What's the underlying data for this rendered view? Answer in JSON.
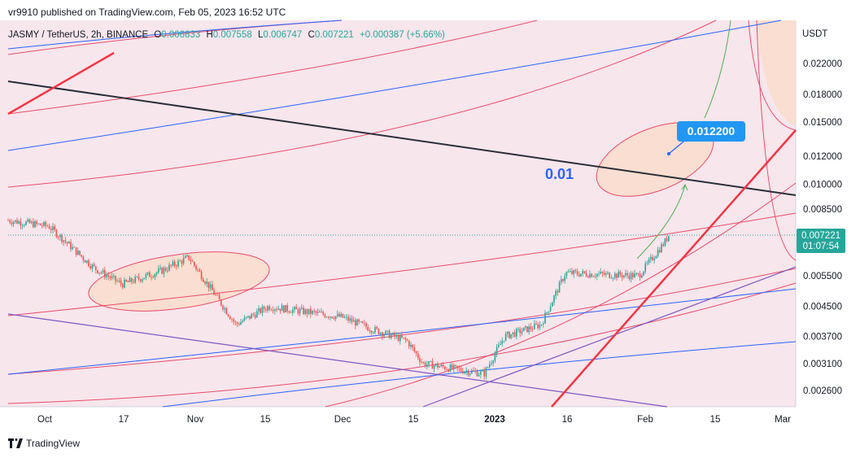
{
  "header": {
    "published": "vr9910 published on TradingView.com, Feb 05, 2023 16:52 UTC"
  },
  "footer": {
    "brand": "TradingView"
  },
  "chart_data": {
    "type": "candlestick",
    "symbol_line": {
      "symbol": "JASMY / TetherUS, 2h, BINANCE",
      "o_label": "O",
      "o_value": "0.006833",
      "h_label": "H",
      "h_value": "0.007558",
      "l_label": "L",
      "l_value": "0.006747",
      "c_label": "C",
      "c_value": "0.007221",
      "change": "+0.000387 (+5.66%)"
    },
    "y_axis": {
      "unit": "USDT",
      "scale": "log",
      "ticks": [
        "0.022000",
        "0.018000",
        "0.015000",
        "0.012000",
        "0.010000",
        "0.008500",
        "0.005500",
        "0.004500",
        "0.003700",
        "0.003100",
        "0.002600"
      ]
    },
    "x_axis": {
      "ticks": [
        "Oct",
        "17",
        "Nov",
        "15",
        "Dec",
        "15",
        "2023",
        "16",
        "Feb",
        "15",
        "Mar"
      ]
    },
    "last_price": {
      "value": "0.007221",
      "countdown": "01:07:54",
      "price": 0.007221
    },
    "annotations": {
      "target_label": "0.012200",
      "level_label": "0.01"
    },
    "price_path": [
      [
        "Oct",
        0.0079
      ],
      [
        "Oct",
        0.0076
      ],
      [
        "17",
        0.0058
      ],
      [
        "17",
        0.0052
      ],
      [
        "Nov",
        0.0057
      ],
      [
        "Nov",
        0.0062
      ],
      [
        "15",
        0.004
      ],
      [
        "15",
        0.0045
      ],
      [
        "Dec",
        0.0042
      ],
      [
        "Dec",
        0.0039
      ],
      [
        "15",
        0.0036
      ],
      [
        "15",
        0.0031
      ],
      [
        "2023",
        0.0029
      ],
      [
        "2023",
        0.0037
      ],
      [
        "16",
        0.004
      ],
      [
        "16",
        0.0056
      ],
      [
        "Feb",
        0.0055
      ],
      [
        "Feb",
        0.0069
      ],
      [
        "Feb",
        0.0072
      ]
    ],
    "colors": {
      "up": "#26a69a",
      "down": "#ef5350",
      "background": "#f7e6ec",
      "trend_black": "#2a2e39",
      "trend_red": "#f23645",
      "fib_red": "#e84b6b",
      "fib_blue": "#2962ff",
      "fib_purple": "#7e57c2",
      "arrow_green": "#4caf50",
      "label_blue": "#2962ff"
    }
  }
}
